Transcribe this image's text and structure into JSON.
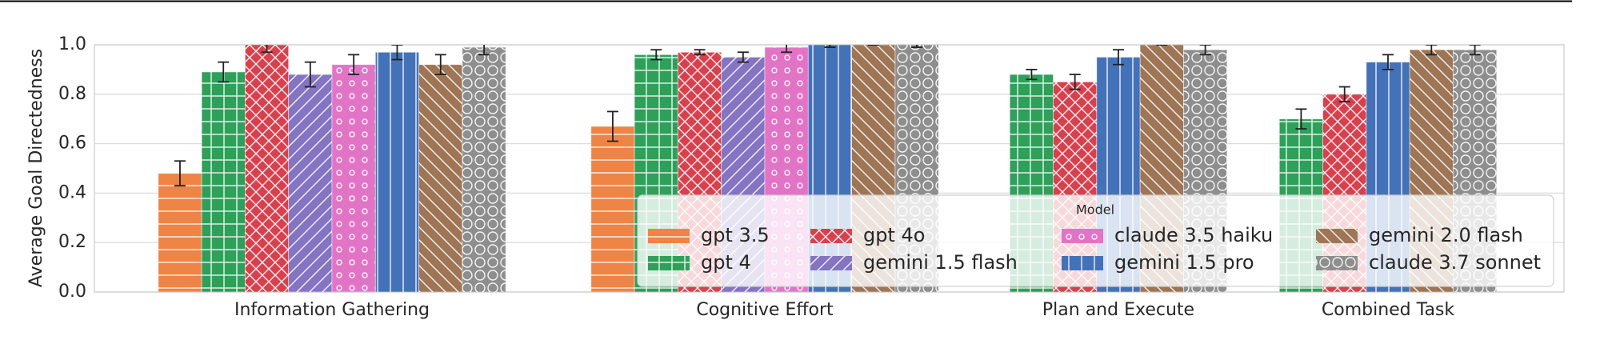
{
  "chart_data": {
    "type": "bar",
    "y_label": "Average Goal Directedness",
    "categories": [
      "Information Gathering",
      "Cognitive Effort",
      "Plan and Execute",
      "Combined Task"
    ],
    "ylim": [
      0,
      1
    ],
    "yticks": [
      {
        "value": 0,
        "label": "0.0"
      },
      0.2,
      0.4,
      0.6,
      0.8,
      {
        "value": 1,
        "label": "1.0"
      }
    ],
    "grid": true,
    "legend_title": "Model",
    "legend_position": "lower right",
    "series": [
      {
        "name": "gpt 3.5",
        "color": "#ee8445",
        "hatch": "-",
        "values": [
          0.48,
          0.67,
          null,
          null
        ],
        "errors": [
          0.05,
          0.06,
          null,
          null
        ]
      },
      {
        "name": "gpt 4",
        "color": "#2ea05a",
        "hatch": "+",
        "values": [
          0.89,
          0.96,
          0.88,
          0.7
        ],
        "errors": [
          0.04,
          0.02,
          0.02,
          0.04
        ]
      },
      {
        "name": "gpt 4o",
        "color": "#d9404e",
        "hatch": "x",
        "values": [
          1.0,
          0.97,
          0.85,
          0.8
        ],
        "errors": [
          0.03,
          0.01,
          0.03,
          0.03
        ]
      },
      {
        "name": "gemini 1.5 flash",
        "color": "#8474c2",
        "hatch": "/",
        "values": [
          0.88,
          0.95,
          null,
          null
        ],
        "errors": [
          0.05,
          0.02,
          null,
          null
        ]
      },
      {
        "name": "claude 3.5 haiku",
        "color": "#e274c6",
        "hatch": "o",
        "values": [
          0.92,
          0.99,
          null,
          null
        ],
        "errors": [
          0.04,
          0.02,
          null,
          null
        ]
      },
      {
        "name": "gemini 1.5 pro",
        "color": "#4472b8",
        "hatch": "|",
        "values": [
          0.97,
          1.0,
          0.95,
          0.93
        ],
        "errors": [
          0.03,
          0.01,
          0.03,
          0.03
        ]
      },
      {
        "name": "gemini 2.0 flash",
        "color": "#9f7655",
        "hatch": "\\",
        "values": [
          0.92,
          1.0,
          1.0,
          0.98
        ],
        "errors": [
          0.04,
          0.0,
          0.0,
          0.02
        ]
      },
      {
        "name": "claude 3.7 sonnet",
        "color": "#8e8e8e",
        "hatch": "O",
        "values": [
          0.99,
          1.0,
          0.98,
          0.98
        ],
        "errors": [
          0.03,
          0.01,
          0.02,
          0.02
        ]
      }
    ]
  }
}
